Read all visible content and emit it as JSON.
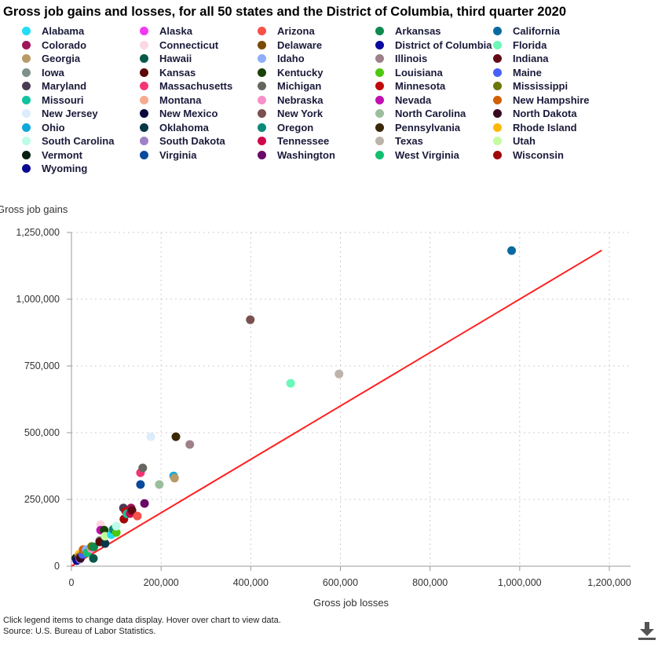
{
  "chart_data": {
    "type": "scatter",
    "title": "Gross job gains and losses, for all 50 states and the District of Columbia, third quarter 2020",
    "xlabel": "Gross job losses",
    "ylabel": "Gross job gains",
    "xlim": [
      0,
      1200000
    ],
    "ylim": [
      0,
      1250000
    ],
    "xticks": [
      0,
      200000,
      400000,
      600000,
      800000,
      1000000,
      1200000
    ],
    "xtick_labels": [
      "0",
      "200,000",
      "400,000",
      "600,000",
      "800,000",
      "1,000,000",
      "1,200,000"
    ],
    "yticks": [
      0,
      250000,
      500000,
      750000,
      1000000,
      1250000
    ],
    "ytick_labels": [
      "0",
      "250,000",
      "500,000",
      "750,000",
      "1,000,000",
      "1,250,000"
    ],
    "grid": true,
    "legend_position": "top",
    "reference_line": {
      "color": "#ff2020",
      "x": [
        0,
        1183000
      ],
      "y": [
        0,
        1183000
      ]
    },
    "series": [
      {
        "name": "Alabama",
        "color": "#22ddf5",
        "x": 89000,
        "y": 118000
      },
      {
        "name": "Alaska",
        "color": "#f438f4",
        "x": 14000,
        "y": 28000
      },
      {
        "name": "Arizona",
        "color": "#f5524a",
        "x": 147000,
        "y": 188000
      },
      {
        "name": "Arkansas",
        "color": "#0e8a4e",
        "x": 50000,
        "y": 72000
      },
      {
        "name": "California",
        "color": "#0a6aa0",
        "x": 982000,
        "y": 1182000
      },
      {
        "name": "Colorado",
        "color": "#a0145a",
        "x": 133000,
        "y": 218000
      },
      {
        "name": "Connecticut",
        "color": "#fcd8e4",
        "x": 65000,
        "y": 156000
      },
      {
        "name": "Delaware",
        "color": "#7a4a08",
        "x": 18000,
        "y": 34000
      },
      {
        "name": "District of Columbia",
        "color": "#0a0aa0",
        "x": 14000,
        "y": 26000
      },
      {
        "name": "Florida",
        "color": "#6cf8b8",
        "x": 489000,
        "y": 685000
      },
      {
        "name": "Georgia",
        "color": "#b89a68",
        "x": 230000,
        "y": 330000
      },
      {
        "name": "Hawaii",
        "color": "#08584a",
        "x": 49000,
        "y": 29000
      },
      {
        "name": "Idaho",
        "color": "#8eaef8",
        "x": 33000,
        "y": 62000
      },
      {
        "name": "Illinois",
        "color": "#9e8088",
        "x": 264000,
        "y": 456000
      },
      {
        "name": "Indiana",
        "color": "#620a14",
        "x": 135000,
        "y": 209000
      },
      {
        "name": "Iowa",
        "color": "#7e908a",
        "x": 63000,
        "y": 96000
      },
      {
        "name": "Kansas",
        "color": "#5a0808",
        "x": 63000,
        "y": 91000
      },
      {
        "name": "Kentucky",
        "color": "#1a4208",
        "x": 73000,
        "y": 135000
      },
      {
        "name": "Louisiana",
        "color": "#4ec810",
        "x": 100000,
        "y": 126000
      },
      {
        "name": "Maine",
        "color": "#4660f8",
        "x": 25000,
        "y": 44000
      },
      {
        "name": "Maryland",
        "color": "#4a3a52",
        "x": 116000,
        "y": 218000
      },
      {
        "name": "Massachusetts",
        "color": "#f53478",
        "x": 154000,
        "y": 350000
      },
      {
        "name": "Michigan",
        "color": "#666660",
        "x": 159000,
        "y": 368000
      },
      {
        "name": "Minnesota",
        "color": "#c00a0a",
        "x": 121000,
        "y": 206000
      },
      {
        "name": "Mississippi",
        "color": "#6a7808",
        "x": 45000,
        "y": 74000
      },
      {
        "name": "Missouri",
        "color": "#10c4a0",
        "x": 124000,
        "y": 196000
      },
      {
        "name": "Montana",
        "color": "#f8aa90",
        "x": 16000,
        "y": 33000
      },
      {
        "name": "Nebraska",
        "color": "#f890c8",
        "x": 44000,
        "y": 66000
      },
      {
        "name": "Nevada",
        "color": "#c010b0",
        "x": 65000,
        "y": 135000
      },
      {
        "name": "New Hampshire",
        "color": "#d06008",
        "x": 26000,
        "y": 62000
      },
      {
        "name": "New Jersey",
        "color": "#dcecfc",
        "x": 177000,
        "y": 485000
      },
      {
        "name": "New Mexico",
        "color": "#08083a",
        "x": 16000,
        "y": 31000
      },
      {
        "name": "New York",
        "color": "#7a5050",
        "x": 399000,
        "y": 923000
      },
      {
        "name": "North Carolina",
        "color": "#9cbe9c",
        "x": 196000,
        "y": 306000
      },
      {
        "name": "North Dakota",
        "color": "#380820",
        "x": 20000,
        "y": 30000
      },
      {
        "name": "Ohio",
        "color": "#10a8dc",
        "x": 228000,
        "y": 338000
      },
      {
        "name": "Oklahoma",
        "color": "#083848",
        "x": 75000,
        "y": 85000
      },
      {
        "name": "Oregon",
        "color": "#0a8878",
        "x": 93000,
        "y": 138000
      },
      {
        "name": "Pennsylvania",
        "color": "#3a2808",
        "x": 233000,
        "y": 485000
      },
      {
        "name": "Rhode Island",
        "color": "#fcb808",
        "x": 17000,
        "y": 44000
      },
      {
        "name": "South Carolina",
        "color": "#bcfce8",
        "x": 100000,
        "y": 150000
      },
      {
        "name": "South Dakota",
        "color": "#a080c8",
        "x": 19000,
        "y": 26000
      },
      {
        "name": "Tennessee",
        "color": "#d0084a",
        "x": 131000,
        "y": 197000
      },
      {
        "name": "Texas",
        "color": "#bcb4ac",
        "x": 597000,
        "y": 720000
      },
      {
        "name": "Utah",
        "color": "#c4fca0",
        "x": 75000,
        "y": 112000
      },
      {
        "name": "Vermont",
        "color": "#082010",
        "x": 10000,
        "y": 30000
      },
      {
        "name": "Virginia",
        "color": "#0a4a9c",
        "x": 154000,
        "y": 306000
      },
      {
        "name": "Washington",
        "color": "#6a0a68",
        "x": 163000,
        "y": 235000
      },
      {
        "name": "West Virginia",
        "color": "#10c070",
        "x": 35000,
        "y": 50000
      },
      {
        "name": "Wisconsin",
        "color": "#a00808",
        "x": 117000,
        "y": 176000
      },
      {
        "name": "Wyoming",
        "color": "#0a0a90",
        "x": 12000,
        "y": 21000
      }
    ]
  },
  "footer": {
    "note": "Click legend items to change data display. Hover over chart to view data.",
    "source": "Source: U.S. Bureau of Labor Statistics."
  },
  "icons": {
    "download": "download-icon"
  }
}
